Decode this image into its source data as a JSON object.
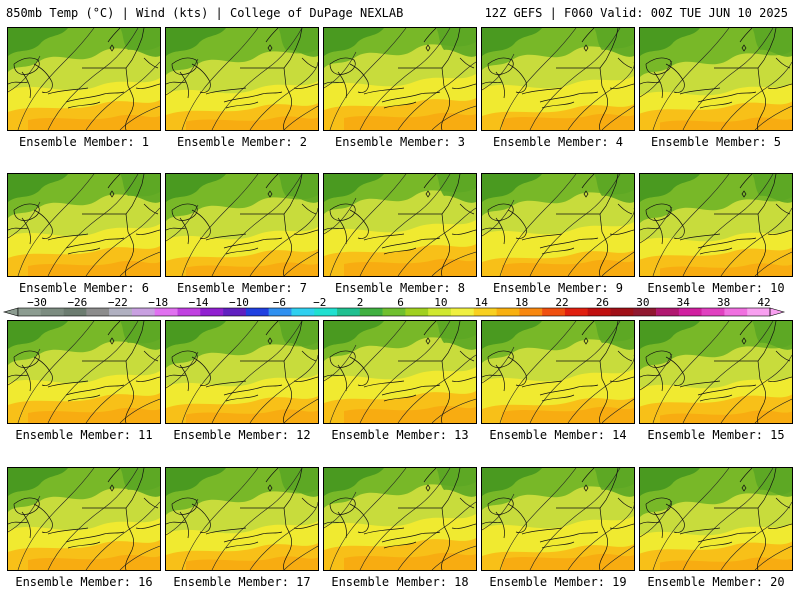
{
  "header": {
    "left": "850mb Temp (°C) | Wind (kts) | College of DuPage NEXLAB",
    "right": "12Z GEFS | F060 Valid: 00Z TUE JUN 10 2025"
  },
  "panels": [
    {
      "label": "Ensemble Member: 1"
    },
    {
      "label": "Ensemble Member: 2"
    },
    {
      "label": "Ensemble Member: 3"
    },
    {
      "label": "Ensemble Member: 4"
    },
    {
      "label": "Ensemble Member: 5"
    },
    {
      "label": "Ensemble Member: 6"
    },
    {
      "label": "Ensemble Member: 7"
    },
    {
      "label": "Ensemble Member: 8"
    },
    {
      "label": "Ensemble Member: 9"
    },
    {
      "label": "Ensemble Member: 10"
    },
    {
      "label": "Ensemble Member: 11"
    },
    {
      "label": "Ensemble Member: 12"
    },
    {
      "label": "Ensemble Member: 13"
    },
    {
      "label": "Ensemble Member: 14"
    },
    {
      "label": "Ensemble Member: 15"
    },
    {
      "label": "Ensemble Member: 16"
    },
    {
      "label": "Ensemble Member: 17"
    },
    {
      "label": "Ensemble Member: 18"
    },
    {
      "label": "Ensemble Member: 19"
    },
    {
      "label": "Ensemble Member: 20"
    }
  ],
  "colorbar": {
    "labels": [
      "-30",
      "-26",
      "-22",
      "-18",
      "-14",
      "-10",
      "-6",
      "-2",
      "2",
      "6",
      "10",
      "14",
      "18",
      "22",
      "26",
      "30",
      "34",
      "38",
      "42"
    ],
    "colors": [
      "#8c9c90",
      "#7c8c80",
      "#6c7c70",
      "#8c8c8c",
      "#b0b0c0",
      "#c8a0e0",
      "#e070f0",
      "#c040e0",
      "#9020d0",
      "#6020c0",
      "#2040e0",
      "#3090f0",
      "#30d0f0",
      "#20e0d0",
      "#20c090",
      "#40b040",
      "#70c030",
      "#a0d020",
      "#d0e830",
      "#f0f040",
      "#f8d020",
      "#f8b010",
      "#f88810",
      "#f05010",
      "#e02010",
      "#c01010",
      "#a01018",
      "#901830",
      "#b01870",
      "#d020a0",
      "#e040c0",
      "#f070e0",
      "#f8a0f0"
    ]
  }
}
